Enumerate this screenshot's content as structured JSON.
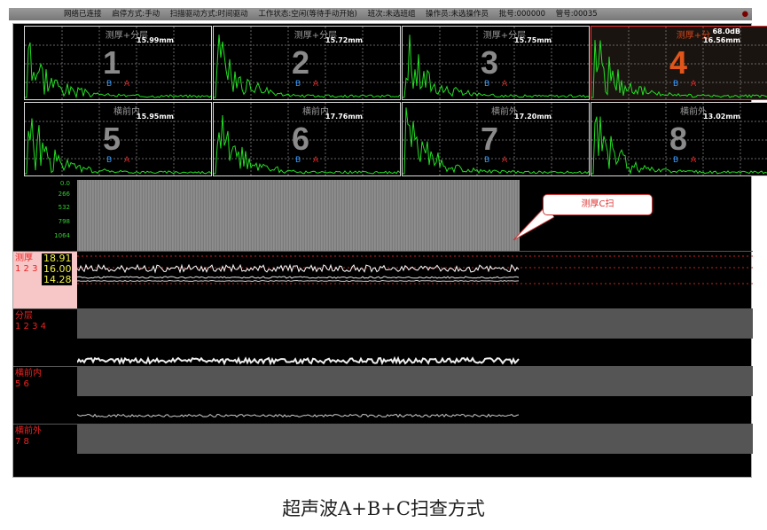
{
  "status_bar": {
    "items": [
      "网络已连接",
      "启停方式:手动",
      "扫描驱动方式:时间驱动",
      "工作状态:空闲(等待手动开始)",
      "班次:未选班组",
      "操作员:未选操作员",
      "批号:000000",
      "管号:00035"
    ]
  },
  "channels": [
    {
      "number": "1",
      "title": "测厚+分层",
      "value": "15.99mm",
      "gate_b": "B",
      "gate_a": "A"
    },
    {
      "number": "2",
      "title": "测厚+分层",
      "value": "15.72mm",
      "gate_b": "B",
      "gate_a": "A"
    },
    {
      "number": "3",
      "title": "测厚+分层",
      "value": "15.75mm",
      "gate_b": "B",
      "gate_a": "A"
    },
    {
      "number": "4",
      "title": "测厚+分",
      "gain": "68.0dB",
      "value": "16.56mm",
      "gate_b": "B",
      "gate_a": "A",
      "selected": true
    },
    {
      "number": "5",
      "title": "横前内",
      "value": "15.95mm",
      "gate_b": "B",
      "gate_a": "A"
    },
    {
      "number": "6",
      "title": "横前内",
      "value": "17.76mm",
      "gate_b": "B",
      "gate_a": "A"
    },
    {
      "number": "7",
      "title": "横前外",
      "value": "17.20mm",
      "gate_b": "B",
      "gate_a": "A"
    },
    {
      "number": "8",
      "title": "横前外",
      "value": "13.02mm",
      "gate_b": "B",
      "gate_a": "A"
    }
  ],
  "cscan": {
    "ticks": [
      "0.0",
      "266",
      "532",
      "798",
      "1064"
    ],
    "callout": "测厚C扫"
  },
  "strips": [
    {
      "label": "测厚",
      "channels": "1 2 3",
      "values": [
        "18.91",
        "16.00",
        "14.28"
      ]
    },
    {
      "label": "分层",
      "channels": "1 2 3 4"
    },
    {
      "label": "横前内",
      "channels": "5 6"
    },
    {
      "label": "横前外",
      "channels": "7 8"
    }
  ],
  "caption": "超声波A+B+C扫查方式",
  "colors": {
    "waveform": "#22dd22",
    "selected": "#e0561a",
    "gate_a": "#ee2222",
    "gate_b": "#3399ff"
  }
}
